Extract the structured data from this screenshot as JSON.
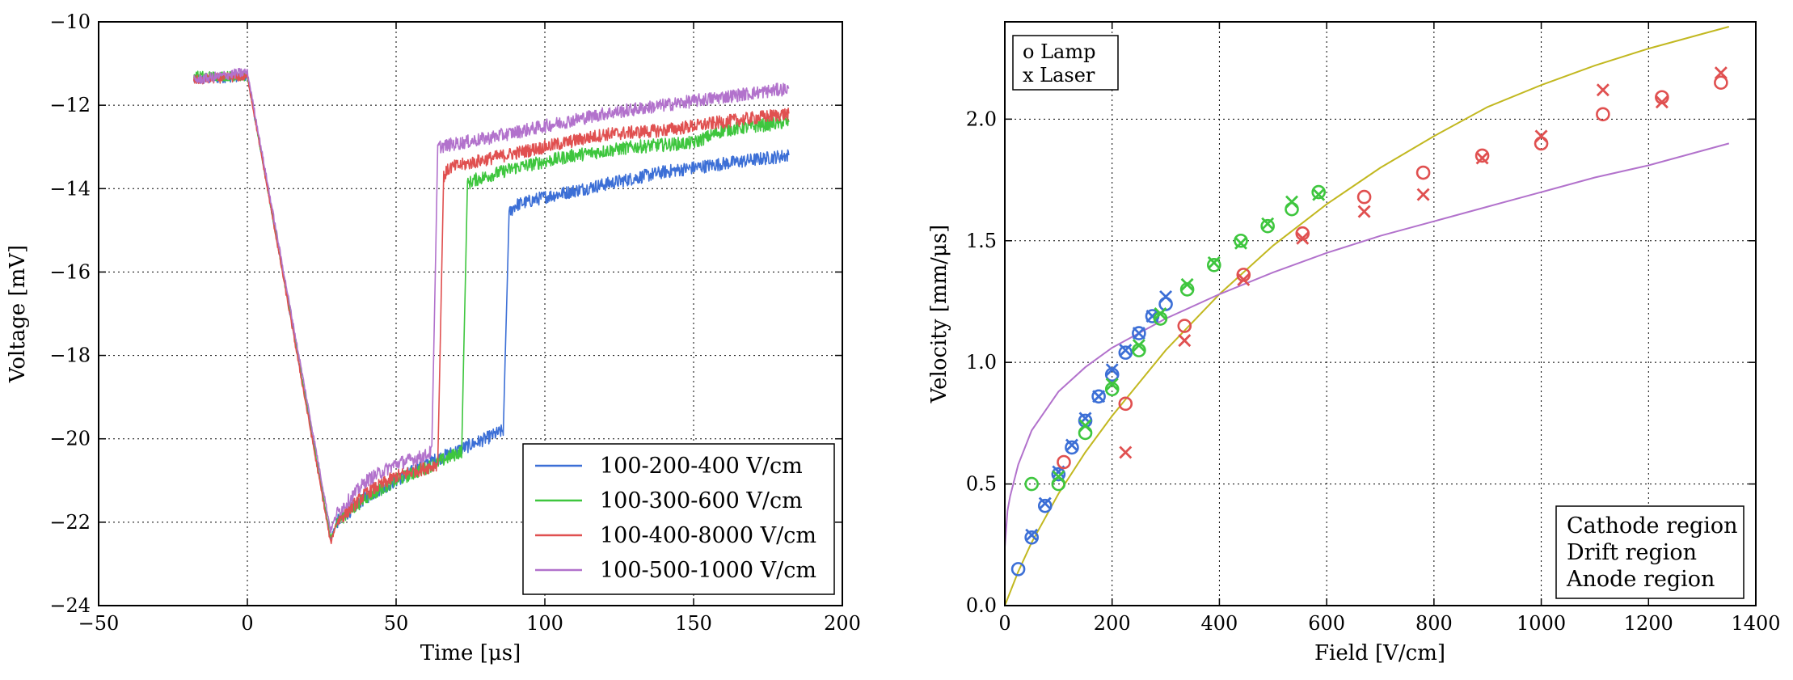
{
  "chart_data": [
    {
      "type": "line",
      "title": "",
      "xlabel": "Time [μs]",
      "ylabel": "Voltage [mV]",
      "xlim": [
        -50,
        200
      ],
      "ylim": [
        -24,
        -10
      ],
      "xticks": [
        -50,
        0,
        50,
        100,
        150,
        200
      ],
      "xtick_labels": [
        "−50",
        "0",
        "50",
        "100",
        "150",
        "200"
      ],
      "yticks": [
        -24,
        -22,
        -20,
        -18,
        -16,
        -14,
        -12,
        -10
      ],
      "ytick_labels": [
        "−24",
        "−22",
        "−20",
        "−18",
        "−16",
        "−14",
        "−12",
        "−10"
      ],
      "grid": true,
      "legend_position": "lower-right",
      "series": [
        {
          "name": "100-200-400 V/cm",
          "color": "#3c6fd6",
          "x": [
            -18,
            0,
            28,
            30,
            40,
            50,
            60,
            70,
            80,
            86,
            88,
            90,
            100,
            120,
            140,
            160,
            182
          ],
          "y": [
            -11.4,
            -11.3,
            -22.4,
            -22.0,
            -21.4,
            -21.0,
            -20.6,
            -20.3,
            -20.0,
            -19.8,
            -14.6,
            -14.4,
            -14.2,
            -13.9,
            -13.6,
            -13.4,
            -13.2
          ]
        },
        {
          "name": "100-300-600 V/cm",
          "color": "#3ec63e",
          "x": [
            -18,
            0,
            28,
            30,
            40,
            50,
            60,
            66,
            72,
            74,
            76,
            90,
            110,
            130,
            150,
            160,
            182
          ],
          "y": [
            -11.3,
            -11.3,
            -22.4,
            -22.0,
            -21.4,
            -21.0,
            -20.7,
            -20.5,
            -20.3,
            -13.9,
            -13.8,
            -13.5,
            -13.2,
            -13.0,
            -12.9,
            -12.6,
            -12.4
          ]
        },
        {
          "name": "100-400-8000 V/cm",
          "color": "#e05050",
          "x": [
            -18,
            0,
            28,
            30,
            40,
            50,
            60,
            64,
            66,
            68,
            80,
            100,
            120,
            140,
            160,
            182
          ],
          "y": [
            -11.4,
            -11.3,
            -22.5,
            -22.0,
            -21.3,
            -20.9,
            -20.7,
            -20.6,
            -13.7,
            -13.5,
            -13.3,
            -13.0,
            -12.7,
            -12.6,
            -12.4,
            -12.2
          ]
        },
        {
          "name": "100-500-1000 V/cm",
          "color": "#b272cc",
          "x": [
            -18,
            0,
            28,
            30,
            40,
            50,
            60,
            62,
            64,
            80,
            100,
            120,
            140,
            160,
            182
          ],
          "y": [
            -11.4,
            -11.2,
            -22.2,
            -21.8,
            -21.0,
            -20.6,
            -20.4,
            -20.3,
            -13.0,
            -12.8,
            -12.5,
            -12.2,
            -12.0,
            -11.8,
            -11.6
          ]
        }
      ]
    },
    {
      "type": "scatter",
      "title": "",
      "xlabel": "Field [V/cm]",
      "ylabel": "Velocity [mm/μs]",
      "xlim": [
        0,
        1400
      ],
      "ylim": [
        0,
        2.4
      ],
      "xticks": [
        0,
        200,
        400,
        600,
        800,
        1000,
        1200,
        1400
      ],
      "xtick_labels": [
        "0",
        "200",
        "400",
        "600",
        "800",
        "1000",
        "1200",
        "1400"
      ],
      "yticks": [
        0.0,
        0.5,
        1.0,
        1.5,
        2.0
      ],
      "ytick_labels": [
        "0.0",
        "0.5",
        "1.0",
        "1.5",
        "2.0"
      ],
      "grid": true,
      "marker_legend": [
        "o Lamp",
        "x Laser"
      ],
      "marker_legend_position": "top-left",
      "region_legend_position": "bottom-right",
      "series": [
        {
          "name": "Cathode region",
          "color": "#3c6fd6",
          "lamp_x": [
            25,
            50,
            75,
            100,
            125,
            150,
            175,
            200,
            225,
            250,
            275,
            300
          ],
          "lamp_y": [
            0.15,
            0.28,
            0.41,
            0.54,
            0.65,
            0.76,
            0.86,
            0.95,
            1.04,
            1.12,
            1.19,
            1.24
          ],
          "laser_x": [
            50,
            75,
            100,
            125,
            150,
            175,
            200,
            225,
            250,
            275,
            300
          ],
          "laser_y": [
            0.29,
            0.42,
            0.55,
            0.66,
            0.77,
            0.86,
            0.97,
            1.05,
            1.12,
            1.19,
            1.27
          ]
        },
        {
          "name": "Drift region",
          "color": "#3ec63e",
          "lamp_x": [
            50,
            100,
            150,
            200,
            250,
            290,
            340,
            390,
            440,
            490,
            535,
            585
          ],
          "lamp_y": [
            0.5,
            0.5,
            0.71,
            0.89,
            1.05,
            1.18,
            1.3,
            1.4,
            1.5,
            1.56,
            1.63,
            1.7
          ],
          "laser_x": [
            100,
            150,
            200,
            250,
            290,
            340,
            390,
            440,
            490,
            535,
            585
          ],
          "laser_y": [
            0.53,
            0.74,
            0.91,
            1.07,
            1.2,
            1.32,
            1.41,
            1.49,
            1.57,
            1.66,
            1.69
          ]
        },
        {
          "name": "Anode region",
          "color": "#e05050",
          "lamp_x": [
            110,
            225,
            335,
            445,
            555,
            670,
            780,
            890,
            1000,
            1115,
            1225,
            1335
          ],
          "lamp_y": [
            0.59,
            0.83,
            1.15,
            1.36,
            1.53,
            1.68,
            1.78,
            1.85,
            1.9,
            2.02,
            2.09,
            2.15
          ],
          "laser_x": [
            225,
            335,
            445,
            555,
            670,
            780,
            890,
            1000,
            1115,
            1225,
            1335
          ],
          "laser_y": [
            0.63,
            1.09,
            1.34,
            1.51,
            1.62,
            1.69,
            1.84,
            1.93,
            2.12,
            2.07,
            2.19
          ]
        }
      ],
      "fit_curves": [
        {
          "name": "yellow fit",
          "color": "#c2b820",
          "x": [
            0,
            25,
            50,
            100,
            150,
            200,
            300,
            400,
            500,
            600,
            700,
            800,
            900,
            1000,
            1100,
            1200,
            1300,
            1350
          ],
          "y": [
            0.0,
            0.14,
            0.26,
            0.46,
            0.63,
            0.78,
            1.05,
            1.28,
            1.48,
            1.65,
            1.8,
            1.93,
            2.05,
            2.14,
            2.22,
            2.29,
            2.35,
            2.38
          ]
        },
        {
          "name": "purple fit",
          "color": "#b272cc",
          "x": [
            0,
            5,
            10,
            25,
            50,
            100,
            150,
            200,
            300,
            400,
            500,
            600,
            700,
            800,
            900,
            1000,
            1100,
            1200,
            1350
          ],
          "y": [
            0.24,
            0.39,
            0.45,
            0.58,
            0.72,
            0.88,
            0.98,
            1.06,
            1.18,
            1.28,
            1.37,
            1.45,
            1.52,
            1.58,
            1.64,
            1.7,
            1.76,
            1.81,
            1.9
          ]
        }
      ]
    }
  ]
}
